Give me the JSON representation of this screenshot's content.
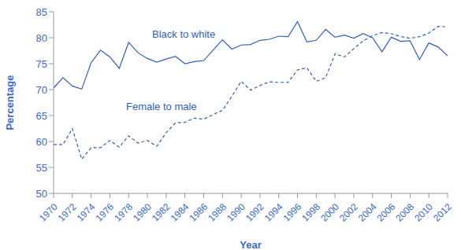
{
  "chart_data": {
    "type": "line",
    "x_label": "Year",
    "y_label": "Percentage",
    "x": [
      1970,
      1971,
      1972,
      1973,
      1974,
      1975,
      1976,
      1977,
      1978,
      1979,
      1980,
      1981,
      1982,
      1983,
      1984,
      1985,
      1986,
      1987,
      1988,
      1989,
      1990,
      1991,
      1992,
      1993,
      1994,
      1995,
      1996,
      1997,
      1998,
      1999,
      2000,
      2001,
      2002,
      2003,
      2004,
      2005,
      2006,
      2007,
      2008,
      2009,
      2010,
      2011,
      2012
    ],
    "series": [
      {
        "name": "Black to white",
        "color": "#2f5fc2",
        "line_style": "solid",
        "marker": "none",
        "values": [
          70.3,
          72.3,
          70.7,
          70.1,
          75.2,
          77.6,
          76.3,
          74.1,
          79.1,
          77.1,
          76.0,
          75.3,
          75.9,
          76.4,
          75.0,
          75.4,
          75.6,
          77.6,
          79.6,
          77.8,
          78.6,
          78.7,
          79.5,
          79.7,
          80.3,
          80.2,
          83.1,
          79.2,
          79.5,
          81.6,
          80.1,
          80.5,
          79.9,
          80.8,
          80.0,
          77.3,
          80.1,
          79.3,
          79.4,
          75.8,
          79.0,
          78.2,
          76.5
        ]
      },
      {
        "name": "Female to male",
        "color": "#2f5fc2",
        "line_style": "dashed",
        "marker": "none",
        "values": [
          59.4,
          59.4,
          62.5,
          56.6,
          58.8,
          58.8,
          60.2,
          58.9,
          61.1,
          59.7,
          60.2,
          59.1,
          61.7,
          63.6,
          63.7,
          64.5,
          64.3,
          65.2,
          66.0,
          68.7,
          71.6,
          69.9,
          70.8,
          71.5,
          71.4,
          71.4,
          73.8,
          74.2,
          71.6,
          72.3,
          76.9,
          76.3,
          77.9,
          79.4,
          80.4,
          81.0,
          80.8,
          80.2,
          79.9,
          80.2,
          80.9,
          82.2,
          82.1
        ]
      }
    ],
    "xlim": [
      1970,
      2012
    ],
    "xticks": [
      1970,
      1972,
      1974,
      1976,
      1978,
      1980,
      1982,
      1984,
      1986,
      1988,
      1990,
      1992,
      1994,
      1996,
      1998,
      2000,
      2002,
      2004,
      2006,
      2008,
      2010,
      2012
    ],
    "ylim": [
      50,
      85
    ],
    "yticks": [
      50,
      55,
      60,
      65,
      70,
      75,
      80,
      85
    ],
    "grid": false
  }
}
